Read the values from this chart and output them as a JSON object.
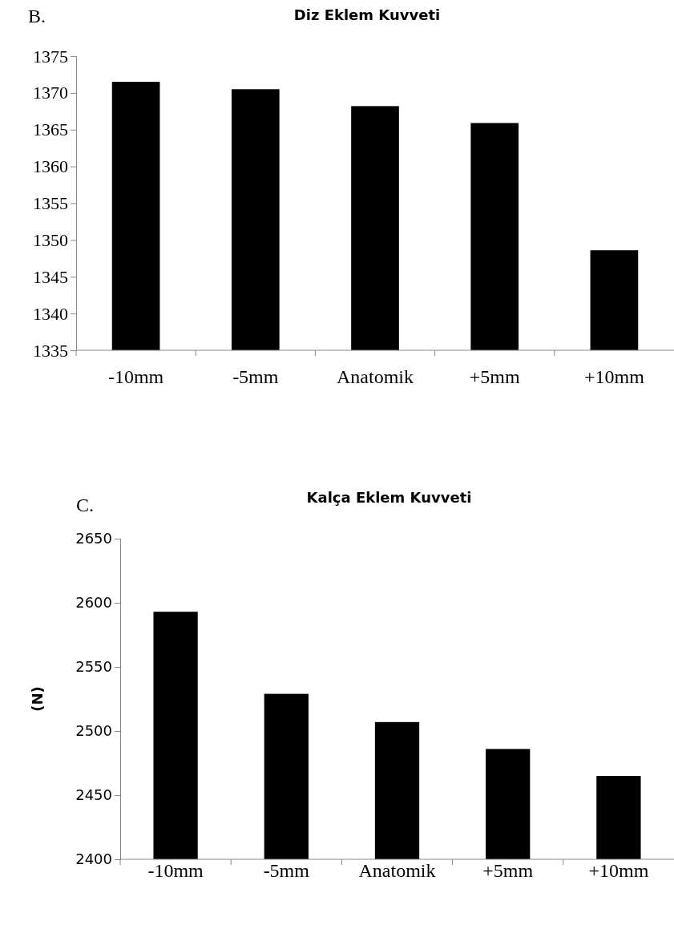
{
  "chart_data": [
    {
      "type": "bar",
      "title": "Diz Eklem Kuvveti",
      "annotations": [
        "B."
      ],
      "categories": [
        "-10mm",
        "-5mm",
        "Anatomik",
        "+5mm",
        "+10mm"
      ],
      "values": [
        1371.5,
        1370.5,
        1368.2,
        1365.9,
        1348.6
      ],
      "color": "#000000",
      "ylim": [
        1335,
        1375
      ],
      "yticks": [
        1335,
        1340,
        1345,
        1350,
        1355,
        1360,
        1365,
        1370,
        1375
      ],
      "grid": false
    },
    {
      "type": "bar",
      "title": "Kalça Eklem Kuvveti",
      "ylabel": "(N)",
      "annotations": [
        "C."
      ],
      "categories": [
        "-10mm",
        "-5mm",
        "Anatomik",
        "+5mm",
        "+10mm"
      ],
      "values": [
        2593,
        2529,
        2507,
        2486,
        2465
      ],
      "color": "#000000",
      "ylim": [
        2400,
        2650
      ],
      "yticks": [
        2400,
        2450,
        2500,
        2550,
        2600,
        2650
      ],
      "grid": false
    }
  ]
}
